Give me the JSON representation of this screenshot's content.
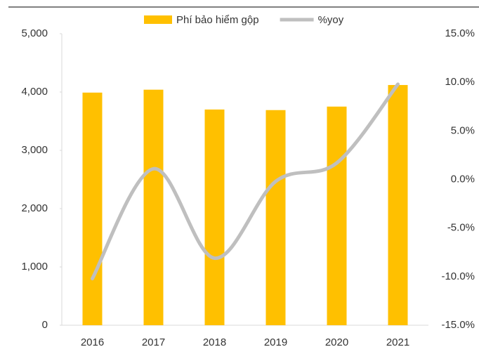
{
  "chart_data": {
    "type": "bar-line",
    "categories": [
      "2016",
      "2017",
      "2018",
      "2019",
      "2020",
      "2021"
    ],
    "series": [
      {
        "name": "Phí bảo hiểm gộp",
        "color": "#ffc000",
        "type": "bar",
        "values": [
          3990,
          4040,
          3700,
          3690,
          3750,
          4120
        ]
      },
      {
        "name": "%yoy",
        "color": "#bfbfbf",
        "type": "line",
        "axis": "y2",
        "smooth": true,
        "values": [
          -10.2,
          1.1,
          -8.1,
          -0.2,
          1.7,
          9.8
        ]
      }
    ],
    "ylim": [
      0,
      5000
    ],
    "yticks": [
      0,
      {
        "value": 1000,
        "label": "1,000"
      },
      {
        "value": 2000,
        "label": "2,000"
      },
      {
        "value": 3000,
        "label": "3,000"
      },
      {
        "value": 4000,
        "label": "4,000"
      },
      {
        "value": 5000,
        "label": "5,000"
      }
    ],
    "y2lim": [
      -15,
      15
    ],
    "y2ticks": [
      {
        "value": -15,
        "label": "-15.0%"
      },
      {
        "value": -10,
        "label": "-10.0%"
      },
      {
        "value": -5,
        "label": "-5.0%"
      },
      {
        "value": 0,
        "label": "0.0%"
      },
      {
        "value": 5,
        "label": "5.0%"
      },
      {
        "value": 10,
        "label": "10.0%"
      },
      {
        "value": 15,
        "label": "15.0%"
      }
    ],
    "grid": false,
    "legend": "top"
  }
}
